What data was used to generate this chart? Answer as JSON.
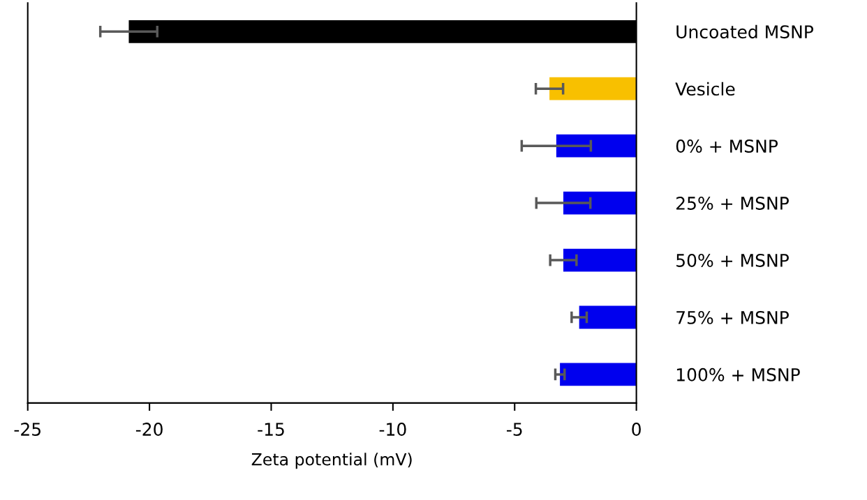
{
  "chart_data": {
    "type": "bar",
    "orientation": "horizontal",
    "xlabel": "Zeta potential (mV)",
    "categories": [
      "Uncoated MSNP",
      "Vesicle",
      "0% + MSNP",
      "25% + MSNP",
      "50% + MSNP",
      "75% + MSNP",
      "100% + MSNP"
    ],
    "values": [
      -20.85,
      -3.57,
      -3.29,
      -3.0,
      -3.0,
      -2.35,
      -3.14
    ],
    "errors": [
      1.17,
      0.56,
      1.42,
      1.11,
      0.54,
      0.31,
      0.19
    ],
    "colors": [
      "#000000",
      "#f8c000",
      "#0000ee",
      "#0000ee",
      "#0000ee",
      "#0000ee",
      "#0000ee"
    ],
    "xlim": [
      -25,
      0
    ],
    "xticks": [
      -25,
      -20,
      -15,
      -10,
      -5,
      0
    ],
    "grid": false,
    "legend": false
  }
}
